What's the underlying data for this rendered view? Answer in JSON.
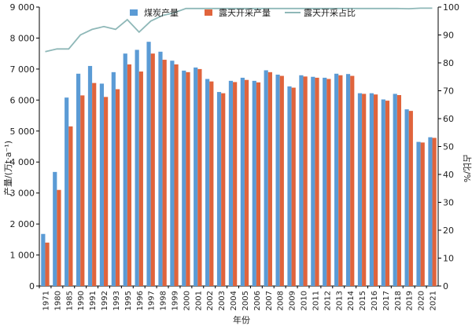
{
  "chart_data": {
    "type": "bar",
    "title": "",
    "xlabel": "年份",
    "ylabel": "产量/(万t·a⁻¹)",
    "y2label": "占比/%",
    "ylim": [
      0,
      9000
    ],
    "y2lim": [
      0,
      100
    ],
    "yticks": [
      "0",
      "1 000",
      "2 000",
      "3 000",
      "4 000",
      "5 000",
      "6 000",
      "7 000",
      "8 000",
      "9 000"
    ],
    "y2ticks": [
      "0",
      "10",
      "20",
      "30",
      "40",
      "50",
      "60",
      "70",
      "80",
      "90",
      "100"
    ],
    "grid": false,
    "legend_position": "top",
    "colors": {
      "coal": "#5b9bd5",
      "open_pit": "#e0643c",
      "ratio": "#8fb8b8"
    },
    "categories": [
      "1971",
      "1980",
      "1985",
      "1990",
      "1991",
      "1992",
      "1993",
      "1995",
      "1996",
      "1997",
      "1998",
      "1999",
      "2000",
      "2001",
      "2002",
      "2003",
      "2004",
      "2005",
      "2006",
      "2007",
      "2008",
      "2009",
      "2010",
      "2011",
      "2012",
      "2013",
      "2014",
      "2015",
      "2016",
      "2017",
      "2018",
      "2019",
      "2020",
      "2021"
    ],
    "series": [
      {
        "name": "煤炭产量",
        "type": "bar",
        "axis": "left",
        "values": [
          1680,
          3680,
          6080,
          6850,
          7100,
          6530,
          6900,
          7500,
          7620,
          7880,
          7560,
          7270,
          6950,
          7050,
          6680,
          6260,
          6620,
          6720,
          6620,
          6960,
          6820,
          6440,
          6800,
          6750,
          6720,
          6850,
          6840,
          6220,
          6220,
          6020,
          6200,
          5700,
          4650,
          4800
        ]
      },
      {
        "name": "露天开采产量",
        "type": "bar",
        "axis": "left",
        "values": [
          1400,
          3100,
          5150,
          6150,
          6550,
          6100,
          6350,
          7150,
          6920,
          7500,
          7300,
          7150,
          6900,
          7000,
          6600,
          6220,
          6580,
          6650,
          6570,
          6900,
          6780,
          6400,
          6760,
          6720,
          6680,
          6800,
          6780,
          6200,
          6180,
          5980,
          6160,
          5650,
          4630,
          4780
        ]
      },
      {
        "name": "露天开采占比",
        "type": "line",
        "axis": "right",
        "values": [
          84,
          85,
          85,
          90,
          92,
          93,
          92,
          95.5,
          91,
          95,
          97,
          98,
          99.5,
          99.5,
          99.5,
          99.5,
          99.5,
          99.5,
          99.5,
          99.5,
          99.5,
          99.5,
          99.5,
          99.5,
          99.5,
          99.5,
          99.5,
          99.5,
          99.5,
          99.5,
          99.5,
          99.4,
          99.6,
          99.6
        ]
      }
    ]
  }
}
